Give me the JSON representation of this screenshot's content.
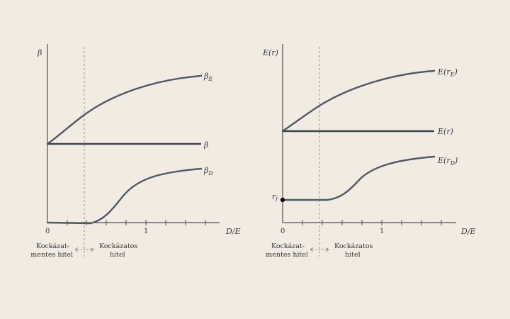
{
  "left_panel": {
    "y_label": "β",
    "x_label": "D/E",
    "x_zero": "0",
    "x_one": "1",
    "line_beta_e": "β",
    "line_beta_e_sub": "E",
    "line_beta": "β",
    "line_beta_d": "β",
    "line_beta_d_sub": "D",
    "caption_left_1": "Kockázat-",
    "caption_left_2": "mentes hitel",
    "caption_right_1": "Kockázatos",
    "caption_right_2": "hitel"
  },
  "right_panel": {
    "y_label": "E(r)",
    "x_label": "D/E",
    "x_zero": "0",
    "x_one": "1",
    "line_e_re": "E(r",
    "line_e_re_sub": "E",
    "line_e_r": "E(r)",
    "line_e_rd": "E(r",
    "line_e_rd_sub": "D",
    "rf_label": "r",
    "rf_sub": "f",
    "caption_left_1": "Kockázat-",
    "caption_left_2": "mentes hitel",
    "caption_right_1": "Kockázatos",
    "caption_right_2": "hitel"
  },
  "colors": {
    "background": "#f1ebe2",
    "curve": "#515866",
    "axis": "#4a4e57"
  }
}
